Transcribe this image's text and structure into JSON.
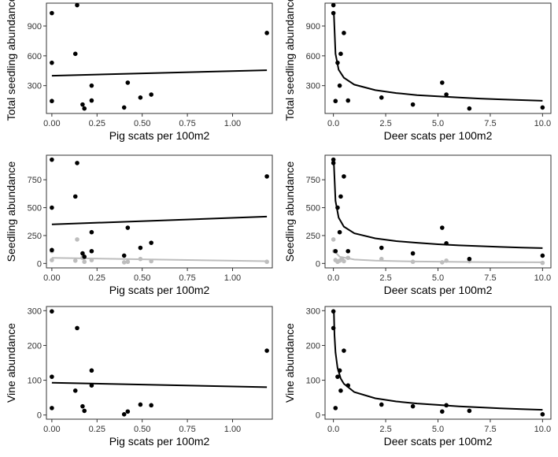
{
  "chart_data": [
    {
      "id": "p1",
      "type": "scatter",
      "xlabel": "Pig scats per 100m2",
      "ylabel": "Total seedling abundance",
      "xlim": [
        -0.03,
        1.22
      ],
      "ylim": [
        20,
        1130
      ],
      "xticks": [
        0.0,
        0.25,
        0.5,
        0.75,
        1.0
      ],
      "xtick_labels": [
        "0.00",
        "0.25",
        "0.50",
        "0.75",
        "1.00"
      ],
      "yticks": [
        300,
        600,
        900
      ],
      "ytick_labels": [
        "300",
        "600",
        "900"
      ],
      "grid": false,
      "series": [
        {
          "color": "#000000",
          "points": [
            [
              0.0,
              1030
            ],
            [
              0.0,
              530
            ],
            [
              0.0,
              145
            ],
            [
              0.14,
              1110
            ],
            [
              0.13,
              620
            ],
            [
              0.17,
              110
            ],
            [
              0.18,
              70
            ],
            [
              0.22,
              300
            ],
            [
              0.22,
              150
            ],
            [
              0.4,
              80
            ],
            [
              0.42,
              330
            ],
            [
              0.49,
              180
            ],
            [
              0.55,
              210
            ],
            [
              1.19,
              830
            ]
          ],
          "fit": [
            [
              0.0,
              400
            ],
            [
              1.19,
              455
            ]
          ]
        }
      ]
    },
    {
      "id": "p2",
      "type": "scatter",
      "xlabel": "Deer scats per 100m2",
      "ylabel": "Total seedling abundance",
      "xlim": [
        -0.4,
        10.4
      ],
      "ylim": [
        20,
        1130
      ],
      "xticks": [
        0.0,
        2.5,
        5.0,
        7.5,
        10.0
      ],
      "xtick_labels": [
        "0.0",
        "2.5",
        "5.0",
        "7.5",
        "10.0"
      ],
      "yticks": [
        300,
        600,
        900
      ],
      "ytick_labels": [
        "300",
        "600",
        "900"
      ],
      "grid": false,
      "series": [
        {
          "color": "#000000",
          "points": [
            [
              0.0,
              1110
            ],
            [
              0.0,
              1030
            ],
            [
              0.1,
              145
            ],
            [
              0.2,
              530
            ],
            [
              0.3,
              300
            ],
            [
              0.35,
              620
            ],
            [
              0.5,
              830
            ],
            [
              0.7,
              150
            ],
            [
              2.3,
              180
            ],
            [
              3.8,
              110
            ],
            [
              5.2,
              330
            ],
            [
              5.4,
              210
            ],
            [
              6.5,
              70
            ],
            [
              10.0,
              80
            ]
          ],
          "fit": [
            [
              0.02,
              1030
            ],
            [
              0.1,
              620
            ],
            [
              0.25,
              460
            ],
            [
              0.5,
              380
            ],
            [
              1.0,
              310
            ],
            [
              2.0,
              255
            ],
            [
              3.0,
              225
            ],
            [
              4.0,
              205
            ],
            [
              5.0,
              192
            ],
            [
              6.0,
              180
            ],
            [
              7.0,
              170
            ],
            [
              8.0,
              162
            ],
            [
              9.0,
              155
            ],
            [
              10.0,
              148
            ]
          ]
        }
      ]
    },
    {
      "id": "p3",
      "type": "scatter",
      "xlabel": "Pig scats per 100m2",
      "ylabel": "Seedling abundance",
      "xlim": [
        -0.03,
        1.22
      ],
      "ylim": [
        -40,
        970
      ],
      "xticks": [
        0.0,
        0.25,
        0.5,
        0.75,
        1.0
      ],
      "xtick_labels": [
        "0.00",
        "0.25",
        "0.50",
        "0.75",
        "1.00"
      ],
      "yticks": [
        0,
        250,
        500,
        750
      ],
      "ytick_labels": [
        "0",
        "250",
        "500",
        "750"
      ],
      "grid": false,
      "series": [
        {
          "color": "#bdbdbd",
          "points": [
            [
              0.0,
              110
            ],
            [
              0.0,
              30
            ],
            [
              0.13,
              25
            ],
            [
              0.14,
              215
            ],
            [
              0.17,
              50
            ],
            [
              0.18,
              15
            ],
            [
              0.22,
              30
            ],
            [
              0.4,
              10
            ],
            [
              0.42,
              15
            ],
            [
              0.49,
              40
            ],
            [
              0.55,
              20
            ],
            [
              1.19,
              15
            ]
          ],
          "fit": [
            [
              0.0,
              50
            ],
            [
              1.19,
              20
            ]
          ]
        },
        {
          "color": "#000000",
          "points": [
            [
              0.0,
              930
            ],
            [
              0.0,
              500
            ],
            [
              0.0,
              120
            ],
            [
              0.14,
              900
            ],
            [
              0.13,
              600
            ],
            [
              0.17,
              90
            ],
            [
              0.18,
              60
            ],
            [
              0.22,
              280
            ],
            [
              0.22,
              110
            ],
            [
              0.4,
              70
            ],
            [
              0.42,
              320
            ],
            [
              0.49,
              140
            ],
            [
              0.55,
              185
            ],
            [
              1.19,
              780
            ]
          ],
          "fit": [
            [
              0.0,
              350
            ],
            [
              1.19,
              420
            ]
          ]
        }
      ]
    },
    {
      "id": "p4",
      "type": "scatter",
      "xlabel": "Deer scats per 100m2",
      "ylabel": "Seedling abundance",
      "xlim": [
        -0.4,
        10.4
      ],
      "ylim": [
        -40,
        970
      ],
      "xticks": [
        0.0,
        2.5,
        5.0,
        7.5,
        10.0
      ],
      "xtick_labels": [
        "0.0",
        "2.5",
        "5.0",
        "7.5",
        "10.0"
      ],
      "yticks": [
        0,
        250,
        500,
        750
      ],
      "ytick_labels": [
        "0",
        "250",
        "500",
        "750"
      ],
      "grid": false,
      "series": [
        {
          "color": "#bdbdbd",
          "points": [
            [
              0.0,
              215
            ],
            [
              0.05,
              110
            ],
            [
              0.1,
              30
            ],
            [
              0.2,
              15
            ],
            [
              0.3,
              25
            ],
            [
              0.4,
              40
            ],
            [
              0.5,
              20
            ],
            [
              0.7,
              50
            ],
            [
              2.3,
              40
            ],
            [
              3.8,
              15
            ],
            [
              5.2,
              10
            ],
            [
              5.4,
              25
            ],
            [
              6.5,
              20
            ],
            [
              10.0,
              5
            ]
          ],
          "fit": [
            [
              0.05,
              110
            ],
            [
              0.3,
              60
            ],
            [
              1.0,
              35
            ],
            [
              2.0,
              25
            ],
            [
              4.0,
              17
            ],
            [
              7.0,
              12
            ],
            [
              10.0,
              10
            ]
          ]
        },
        {
          "color": "#000000",
          "points": [
            [
              0.0,
              930
            ],
            [
              0.0,
              900
            ],
            [
              0.1,
              110
            ],
            [
              0.2,
              500
            ],
            [
              0.3,
              280
            ],
            [
              0.35,
              600
            ],
            [
              0.5,
              780
            ],
            [
              0.7,
              110
            ],
            [
              2.3,
              140
            ],
            [
              3.8,
              90
            ],
            [
              5.2,
              320
            ],
            [
              5.4,
              180
            ],
            [
              6.5,
              40
            ],
            [
              10.0,
              70
            ]
          ],
          "fit": [
            [
              0.02,
              900
            ],
            [
              0.1,
              560
            ],
            [
              0.25,
              410
            ],
            [
              0.5,
              330
            ],
            [
              1.0,
              270
            ],
            [
              2.0,
              225
            ],
            [
              3.0,
              200
            ],
            [
              4.0,
              185
            ],
            [
              5.0,
              172
            ],
            [
              6.0,
              162
            ],
            [
              7.0,
              155
            ],
            [
              8.0,
              148
            ],
            [
              9.0,
              142
            ],
            [
              10.0,
              137
            ]
          ]
        }
      ]
    },
    {
      "id": "p5",
      "type": "scatter",
      "xlabel": "Pig scats per 100m2",
      "ylabel": "Vine abundance",
      "xlim": [
        -0.03,
        1.22
      ],
      "ylim": [
        -12,
        312
      ],
      "xticks": [
        0.0,
        0.25,
        0.5,
        0.75,
        1.0
      ],
      "xtick_labels": [
        "0.00",
        "0.25",
        "0.50",
        "0.75",
        "1.00"
      ],
      "yticks": [
        0,
        100,
        200,
        300
      ],
      "ytick_labels": [
        "0",
        "100",
        "200",
        "300"
      ],
      "grid": false,
      "series": [
        {
          "color": "#000000",
          "points": [
            [
              0.0,
              298
            ],
            [
              0.0,
              110
            ],
            [
              0.0,
              20
            ],
            [
              0.14,
              250
            ],
            [
              0.13,
              70
            ],
            [
              0.17,
              25
            ],
            [
              0.18,
              12
            ],
            [
              0.22,
              128
            ],
            [
              0.22,
              85
            ],
            [
              0.4,
              2
            ],
            [
              0.42,
              10
            ],
            [
              0.49,
              30
            ],
            [
              0.55,
              28
            ],
            [
              1.19,
              185
            ]
          ],
          "fit": [
            [
              0.0,
              93
            ],
            [
              1.19,
              80
            ]
          ]
        }
      ]
    },
    {
      "id": "p6",
      "type": "scatter",
      "xlabel": "Deer scats per 100m2",
      "ylabel": "Vine abundance",
      "xlim": [
        -0.4,
        10.4
      ],
      "ylim": [
        -12,
        312
      ],
      "xticks": [
        0.0,
        2.5,
        5.0,
        7.5,
        10.0
      ],
      "xtick_labels": [
        "0.0",
        "2.5",
        "5.0",
        "7.5",
        "10.0"
      ],
      "yticks": [
        0,
        100,
        200,
        300
      ],
      "ytick_labels": [
        "0",
        "100",
        "200",
        "300"
      ],
      "grid": false,
      "series": [
        {
          "color": "#000000",
          "points": [
            [
              0.0,
              298
            ],
            [
              0.0,
              250
            ],
            [
              0.1,
              20
            ],
            [
              0.2,
              110
            ],
            [
              0.3,
              128
            ],
            [
              0.35,
              70
            ],
            [
              0.5,
              185
            ],
            [
              0.7,
              85
            ],
            [
              2.3,
              30
            ],
            [
              3.8,
              25
            ],
            [
              5.2,
              10
            ],
            [
              5.4,
              28
            ],
            [
              6.5,
              12
            ],
            [
              10.0,
              2
            ]
          ],
          "fit": [
            [
              0.02,
              300
            ],
            [
              0.05,
              230
            ],
            [
              0.1,
              180
            ],
            [
              0.2,
              135
            ],
            [
              0.35,
              105
            ],
            [
              0.5,
              90
            ],
            [
              1.0,
              66
            ],
            [
              2.0,
              48
            ],
            [
              3.0,
              39
            ],
            [
              4.0,
              33
            ],
            [
              5.0,
              29
            ],
            [
              6.0,
              25
            ],
            [
              7.0,
              22
            ],
            [
              8.0,
              19
            ],
            [
              9.0,
              17
            ],
            [
              10.0,
              15
            ]
          ]
        }
      ]
    }
  ]
}
